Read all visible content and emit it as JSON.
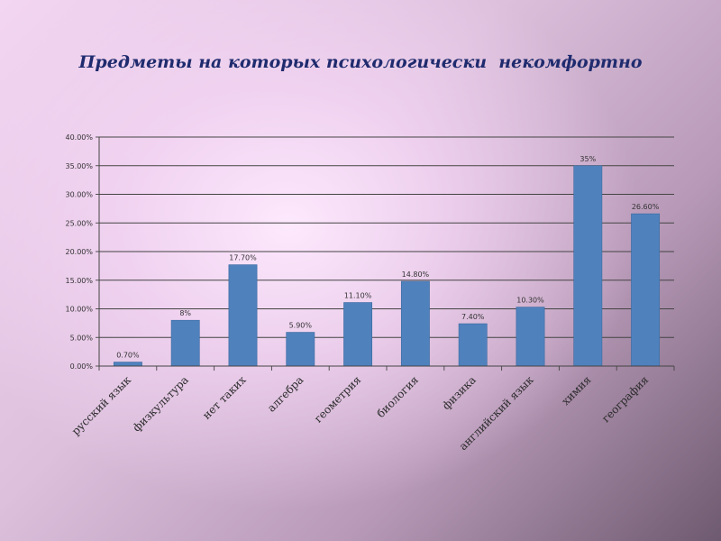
{
  "slide": {
    "title": "Предметы на которых психологически  некомфортно"
  },
  "chart_data": {
    "type": "bar",
    "title": "Предметы на которых психологически  некомфортно",
    "categories": [
      "русский язык",
      "физкультура",
      "нет таких",
      "алгебра",
      "геометрия",
      "биология",
      "физика",
      "английский язык",
      "химия",
      "география"
    ],
    "values": [
      0.7,
      8,
      17.7,
      5.9,
      11.1,
      14.8,
      7.4,
      10.3,
      35,
      26.6
    ],
    "data_labels": [
      "0.70%",
      "8%",
      "17.70%",
      "5.90%",
      "11.10%",
      "14.80%",
      "7.40%",
      "10.30%",
      "35%",
      "26.60%"
    ],
    "y_ticks": [
      0,
      5,
      10,
      15,
      20,
      25,
      30,
      35,
      40
    ],
    "y_tick_labels": [
      "0.00%",
      "5.00%",
      "10.00%",
      "15.00%",
      "20.00%",
      "25.00%",
      "30.00%",
      "35.00%",
      "40.00%"
    ],
    "ylim": [
      0,
      40
    ],
    "grid": true,
    "legend": "none",
    "bar_color": "#4f81bd"
  }
}
